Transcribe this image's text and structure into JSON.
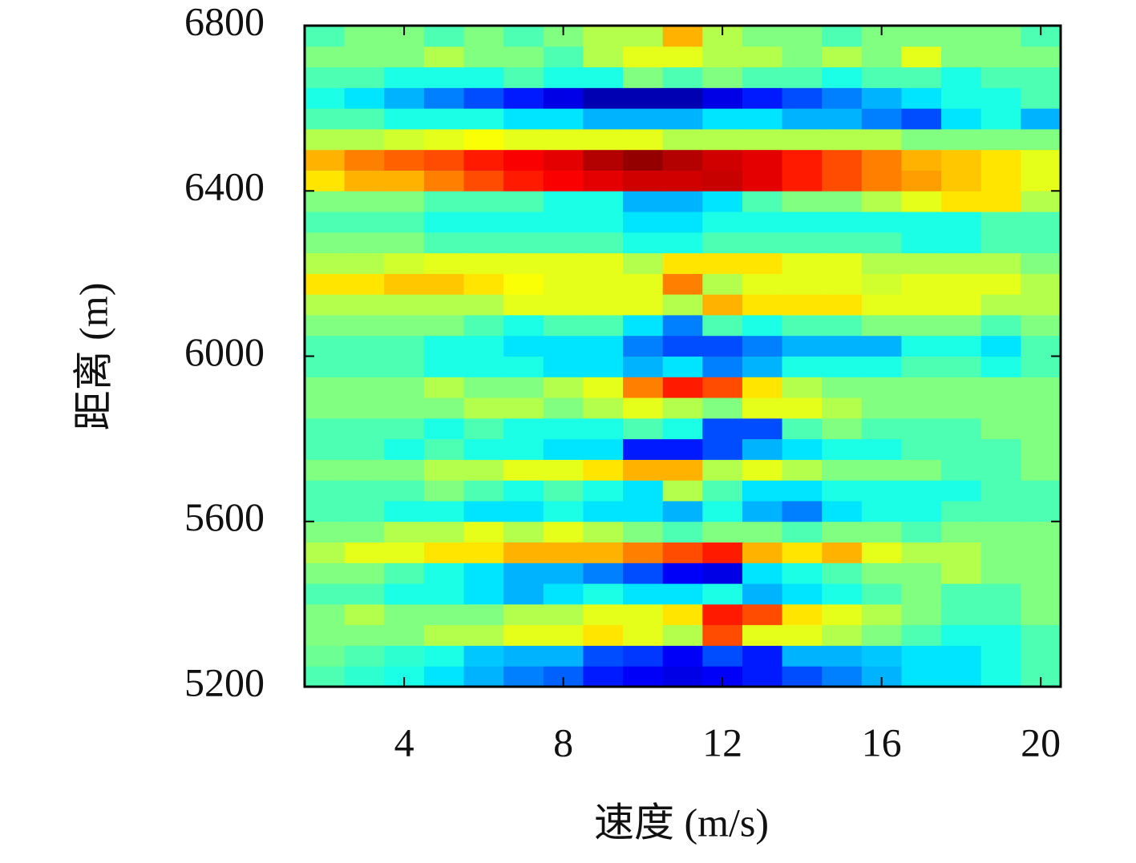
{
  "chart_data": {
    "type": "heatmap",
    "xlabel": "速度 (m/s)",
    "ylabel": "距离 (m)",
    "colormap": "jet",
    "vlim": [
      0,
      1
    ],
    "xlim": [
      1.5,
      20.5
    ],
    "ylim": [
      5200,
      6800
    ],
    "xticks": [
      4,
      8,
      12,
      16,
      20
    ],
    "yticks": [
      5200,
      5600,
      6000,
      6400,
      6800
    ],
    "x": [
      2,
      3,
      4,
      5,
      6,
      7,
      8,
      9,
      10,
      11,
      12,
      13,
      14,
      15,
      16,
      17,
      18,
      19,
      20
    ],
    "y": [
      5225,
      5275,
      5325,
      5375,
      5425,
      5475,
      5525,
      5575,
      5625,
      5675,
      5725,
      5775,
      5825,
      5875,
      5925,
      5975,
      6025,
      6075,
      6125,
      6175,
      6225,
      6275,
      6325,
      6375,
      6425,
      6475,
      6525,
      6575,
      6625,
      6675,
      6725,
      6775
    ],
    "z": [
      [
        0.45,
        0.42,
        0.4,
        0.35,
        0.3,
        0.25,
        0.22,
        0.15,
        0.12,
        0.1,
        0.12,
        0.15,
        0.2,
        0.25,
        0.3,
        0.35,
        0.35,
        0.4,
        0.45
      ],
      [
        0.48,
        0.45,
        0.42,
        0.4,
        0.32,
        0.3,
        0.3,
        0.2,
        0.18,
        0.12,
        0.2,
        0.15,
        0.3,
        0.3,
        0.32,
        0.35,
        0.35,
        0.4,
        0.45
      ],
      [
        0.5,
        0.5,
        0.5,
        0.55,
        0.55,
        0.6,
        0.6,
        0.65,
        0.6,
        0.55,
        0.8,
        0.6,
        0.6,
        0.55,
        0.5,
        0.45,
        0.4,
        0.4,
        0.45
      ],
      [
        0.5,
        0.55,
        0.5,
        0.5,
        0.5,
        0.55,
        0.55,
        0.6,
        0.6,
        0.65,
        0.85,
        0.8,
        0.65,
        0.6,
        0.55,
        0.5,
        0.45,
        0.45,
        0.5
      ],
      [
        0.45,
        0.45,
        0.4,
        0.4,
        0.35,
        0.3,
        0.35,
        0.4,
        0.35,
        0.35,
        0.4,
        0.3,
        0.35,
        0.4,
        0.45,
        0.5,
        0.45,
        0.45,
        0.5
      ],
      [
        0.5,
        0.5,
        0.45,
        0.4,
        0.35,
        0.3,
        0.3,
        0.25,
        0.2,
        0.12,
        0.1,
        0.35,
        0.4,
        0.45,
        0.5,
        0.5,
        0.55,
        0.5,
        0.5
      ],
      [
        0.55,
        0.6,
        0.6,
        0.65,
        0.65,
        0.7,
        0.7,
        0.7,
        0.75,
        0.8,
        0.85,
        0.7,
        0.65,
        0.7,
        0.6,
        0.55,
        0.55,
        0.5,
        0.5
      ],
      [
        0.5,
        0.5,
        0.55,
        0.55,
        0.6,
        0.55,
        0.6,
        0.55,
        0.5,
        0.45,
        0.5,
        0.5,
        0.45,
        0.5,
        0.5,
        0.45,
        0.5,
        0.5,
        0.5
      ],
      [
        0.45,
        0.45,
        0.4,
        0.4,
        0.35,
        0.35,
        0.4,
        0.35,
        0.35,
        0.3,
        0.4,
        0.3,
        0.25,
        0.35,
        0.4,
        0.4,
        0.45,
        0.45,
        0.45
      ],
      [
        0.45,
        0.45,
        0.45,
        0.5,
        0.45,
        0.4,
        0.45,
        0.4,
        0.35,
        0.55,
        0.45,
        0.35,
        0.35,
        0.4,
        0.4,
        0.4,
        0.4,
        0.45,
        0.45
      ],
      [
        0.5,
        0.5,
        0.5,
        0.55,
        0.55,
        0.6,
        0.6,
        0.65,
        0.7,
        0.7,
        0.55,
        0.6,
        0.55,
        0.5,
        0.5,
        0.5,
        0.45,
        0.45,
        0.5
      ],
      [
        0.45,
        0.45,
        0.4,
        0.45,
        0.4,
        0.4,
        0.35,
        0.35,
        0.15,
        0.15,
        0.2,
        0.3,
        0.35,
        0.4,
        0.4,
        0.45,
        0.45,
        0.45,
        0.5
      ],
      [
        0.45,
        0.45,
        0.45,
        0.4,
        0.45,
        0.4,
        0.4,
        0.4,
        0.45,
        0.4,
        0.2,
        0.2,
        0.45,
        0.5,
        0.45,
        0.45,
        0.45,
        0.5,
        0.5
      ],
      [
        0.5,
        0.5,
        0.5,
        0.5,
        0.55,
        0.55,
        0.5,
        0.55,
        0.6,
        0.55,
        0.5,
        0.6,
        0.6,
        0.55,
        0.5,
        0.5,
        0.5,
        0.5,
        0.5
      ],
      [
        0.5,
        0.5,
        0.5,
        0.55,
        0.5,
        0.5,
        0.55,
        0.6,
        0.75,
        0.85,
        0.8,
        0.65,
        0.55,
        0.5,
        0.5,
        0.5,
        0.5,
        0.5,
        0.5
      ],
      [
        0.45,
        0.45,
        0.45,
        0.4,
        0.4,
        0.4,
        0.35,
        0.35,
        0.3,
        0.35,
        0.25,
        0.3,
        0.4,
        0.4,
        0.4,
        0.45,
        0.45,
        0.4,
        0.45
      ],
      [
        0.45,
        0.45,
        0.45,
        0.4,
        0.4,
        0.35,
        0.35,
        0.35,
        0.25,
        0.2,
        0.2,
        0.25,
        0.3,
        0.3,
        0.3,
        0.4,
        0.4,
        0.35,
        0.45
      ],
      [
        0.5,
        0.5,
        0.5,
        0.5,
        0.45,
        0.4,
        0.45,
        0.45,
        0.35,
        0.25,
        0.45,
        0.4,
        0.45,
        0.45,
        0.5,
        0.5,
        0.5,
        0.45,
        0.5
      ],
      [
        0.55,
        0.55,
        0.55,
        0.55,
        0.55,
        0.6,
        0.6,
        0.6,
        0.6,
        0.55,
        0.7,
        0.65,
        0.65,
        0.65,
        0.6,
        0.6,
        0.6,
        0.55,
        0.55
      ],
      [
        0.65,
        0.65,
        0.68,
        0.68,
        0.65,
        0.62,
        0.6,
        0.6,
        0.6,
        0.75,
        0.55,
        0.6,
        0.6,
        0.6,
        0.58,
        0.6,
        0.6,
        0.6,
        0.55
      ],
      [
        0.55,
        0.55,
        0.58,
        0.6,
        0.6,
        0.6,
        0.6,
        0.6,
        0.55,
        0.65,
        0.65,
        0.65,
        0.6,
        0.6,
        0.55,
        0.55,
        0.55,
        0.55,
        0.5
      ],
      [
        0.5,
        0.5,
        0.5,
        0.45,
        0.45,
        0.45,
        0.45,
        0.45,
        0.4,
        0.4,
        0.45,
        0.45,
        0.45,
        0.45,
        0.45,
        0.4,
        0.4,
        0.45,
        0.45
      ],
      [
        0.45,
        0.45,
        0.45,
        0.4,
        0.4,
        0.4,
        0.4,
        0.4,
        0.35,
        0.35,
        0.4,
        0.4,
        0.4,
        0.4,
        0.4,
        0.4,
        0.4,
        0.45,
        0.45
      ],
      [
        0.5,
        0.5,
        0.5,
        0.45,
        0.45,
        0.45,
        0.4,
        0.4,
        0.3,
        0.3,
        0.35,
        0.45,
        0.5,
        0.5,
        0.55,
        0.6,
        0.65,
        0.65,
        0.55
      ],
      [
        0.65,
        0.7,
        0.7,
        0.75,
        0.8,
        0.85,
        0.88,
        0.9,
        0.92,
        0.92,
        0.93,
        0.9,
        0.85,
        0.8,
        0.75,
        0.72,
        0.68,
        0.65,
        0.6
      ],
      [
        0.7,
        0.75,
        0.78,
        0.8,
        0.85,
        0.88,
        0.9,
        0.95,
        0.98,
        0.95,
        0.92,
        0.9,
        0.85,
        0.8,
        0.75,
        0.7,
        0.68,
        0.65,
        0.6
      ],
      [
        0.55,
        0.55,
        0.58,
        0.6,
        0.62,
        0.6,
        0.6,
        0.6,
        0.6,
        0.55,
        0.55,
        0.55,
        0.55,
        0.55,
        0.55,
        0.5,
        0.5,
        0.5,
        0.5
      ],
      [
        0.45,
        0.45,
        0.4,
        0.4,
        0.4,
        0.35,
        0.35,
        0.3,
        0.3,
        0.3,
        0.35,
        0.35,
        0.3,
        0.3,
        0.25,
        0.2,
        0.35,
        0.4,
        0.3
      ],
      [
        0.4,
        0.35,
        0.3,
        0.25,
        0.2,
        0.15,
        0.1,
        0.05,
        0.05,
        0.05,
        0.1,
        0.15,
        0.2,
        0.25,
        0.3,
        0.35,
        0.4,
        0.4,
        0.45
      ],
      [
        0.45,
        0.45,
        0.4,
        0.4,
        0.4,
        0.45,
        0.4,
        0.4,
        0.5,
        0.45,
        0.5,
        0.45,
        0.45,
        0.4,
        0.45,
        0.45,
        0.4,
        0.45,
        0.45
      ],
      [
        0.5,
        0.5,
        0.5,
        0.55,
        0.5,
        0.5,
        0.45,
        0.55,
        0.6,
        0.6,
        0.55,
        0.55,
        0.5,
        0.55,
        0.5,
        0.6,
        0.5,
        0.5,
        0.5
      ],
      [
        0.45,
        0.5,
        0.5,
        0.45,
        0.5,
        0.45,
        0.5,
        0.55,
        0.55,
        0.7,
        0.55,
        0.5,
        0.5,
        0.45,
        0.5,
        0.5,
        0.5,
        0.5,
        0.45
      ]
    ]
  }
}
